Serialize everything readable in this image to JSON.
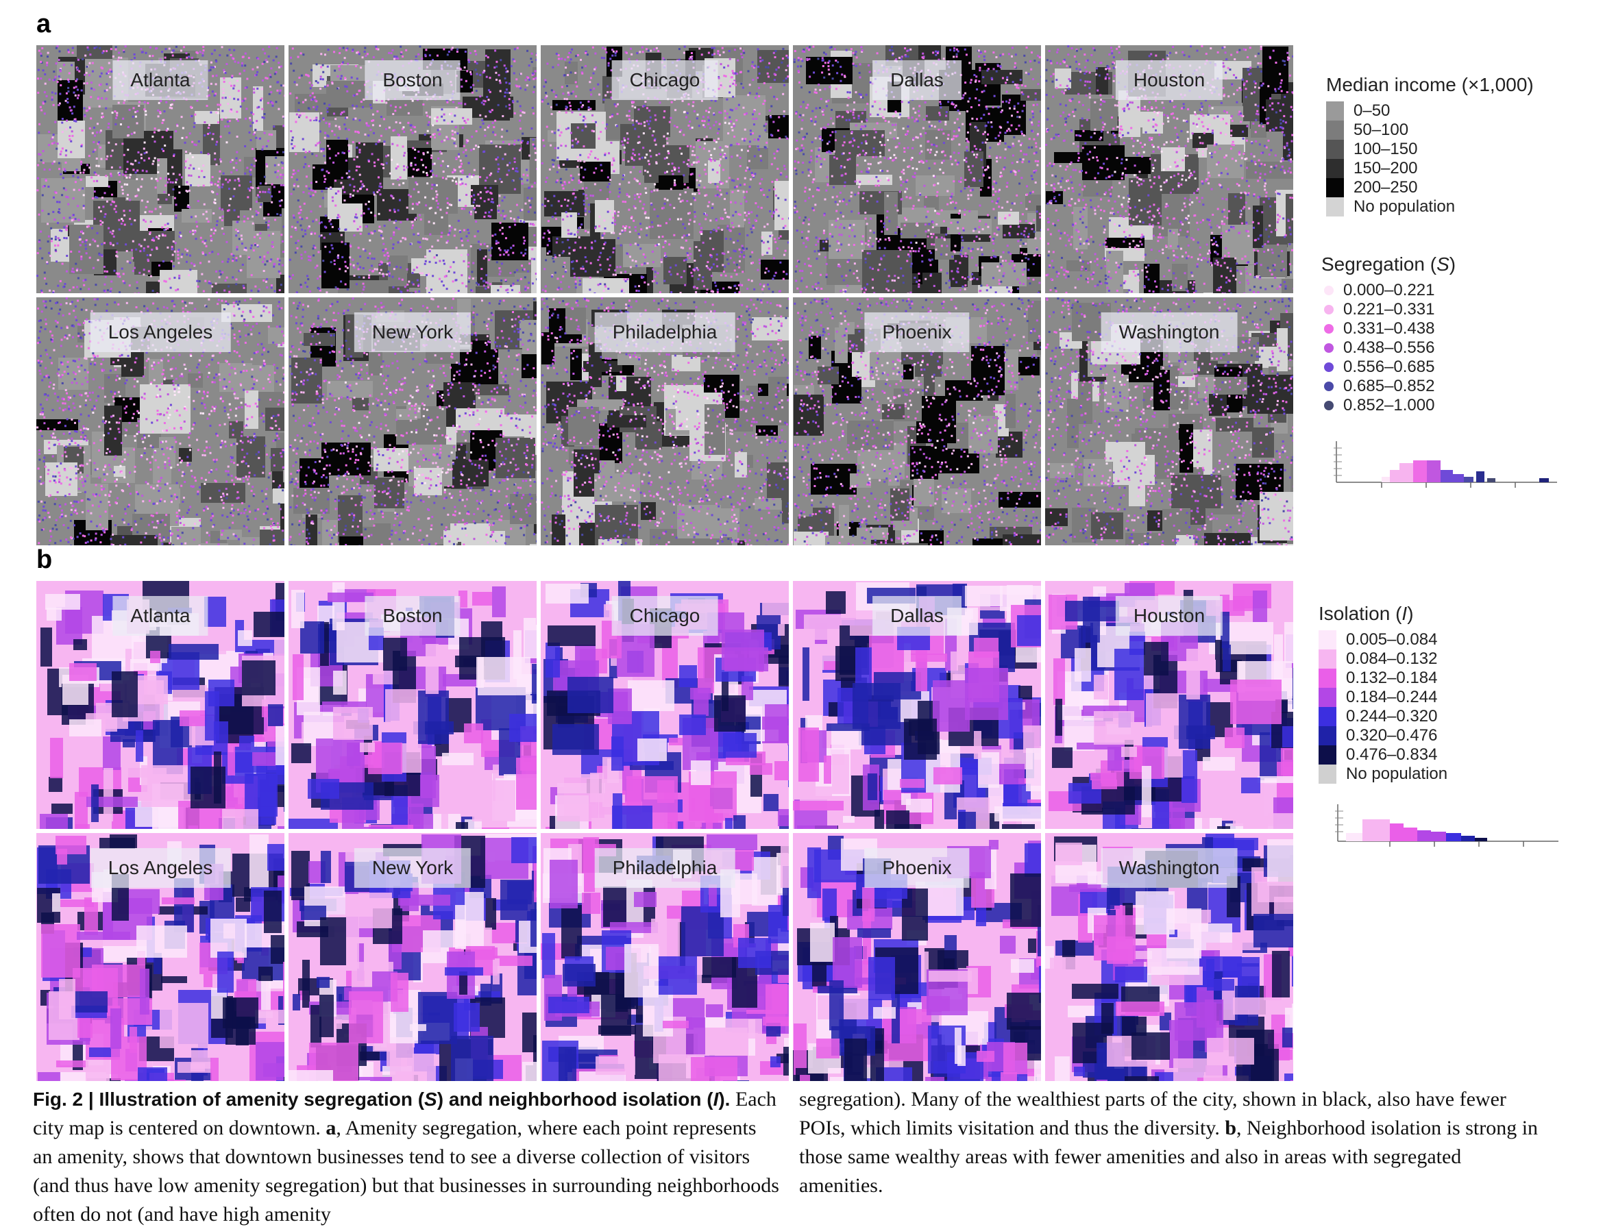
{
  "panel_a": {
    "letter": "a",
    "cities": [
      "Atlanta",
      "Boston",
      "Chicago",
      "Dallas",
      "Houston",
      "Los Angeles",
      "New York",
      "Philadelphia",
      "Phoenix",
      "Washington"
    ],
    "income_legend": {
      "title": "Median income (×1,000)",
      "items": [
        {
          "label": "0–50",
          "color": "#9a9a9a"
        },
        {
          "label": "50–100",
          "color": "#7c7c7c"
        },
        {
          "label": "100–150",
          "color": "#555555"
        },
        {
          "label": "150–200",
          "color": "#2e2e2e"
        },
        {
          "label": "200–250",
          "color": "#050505"
        },
        {
          "label": "No population",
          "color": "#d4d4d4"
        }
      ]
    },
    "segregation_legend": {
      "title": "Segregation (",
      "title_var": "S",
      "title_end": ")",
      "items": [
        {
          "label": "0.000–0.221",
          "color": "#fde6f8"
        },
        {
          "label": "0.221–0.331",
          "color": "#f7b4ef"
        },
        {
          "label": "0.331–0.438",
          "color": "#ee6ce6"
        },
        {
          "label": "0.438–0.556",
          "color": "#c057e0"
        },
        {
          "label": "0.556–0.685",
          "color": "#6f4ad8"
        },
        {
          "label": "0.685–0.852",
          "color": "#4b4aa8"
        },
        {
          "label": "0.852–1.000",
          "color": "#454a72"
        }
      ]
    }
  },
  "panel_b": {
    "letter": "b",
    "cities": [
      "Atlanta",
      "Boston",
      "Chicago",
      "Dallas",
      "Houston",
      "Los Angeles",
      "New York",
      "Philadelphia",
      "Phoenix",
      "Washington"
    ],
    "isolation_legend": {
      "title": "Isolation (",
      "title_var": "I",
      "title_end": ")",
      "items": [
        {
          "label": "0.005–0.084",
          "color": "#fde8fb"
        },
        {
          "label": "0.084–0.132",
          "color": "#f7b6f1"
        },
        {
          "label": "0.132–0.184",
          "color": "#ea5fe8"
        },
        {
          "label": "0.184–0.244",
          "color": "#b347e6"
        },
        {
          "label": "0.244–0.320",
          "color": "#3c2fe0"
        },
        {
          "label": "0.320–0.476",
          "color": "#1f22a8"
        },
        {
          "label": "0.476–0.834",
          "color": "#0d0f4a"
        },
        {
          "label": "No population",
          "color": "#d0d0d0"
        }
      ]
    }
  },
  "colors": {
    "map_gray_bg": "#8a8a8a",
    "label_box": "rgba(235,235,245,0.72)"
  },
  "caption": {
    "fig": "Fig. 2 | Illustration of amenity segregation (",
    "fig_s": "S",
    "fig_mid": ") and neighborhood isolation (",
    "fig_i": "I",
    "fig_end": ").",
    "left_rest": " Each city map is centered on downtown. ",
    "a_letter": "a",
    "left_rest2": ", Amenity segregation, where each point represents an amenity, shows that downtown businesses tend to see a diverse collection of visitors (and thus have low amenity segregation) but that businesses in surrounding neighborhoods often do not (and have high amenity",
    "right_1": "segregation). Many of the wealthiest parts of the city, shown in black, also have fewer POIs, which limits visitation and thus the diversity. ",
    "b_letter": "b",
    "right_2": ", Neighborhood isolation is strong in those same wealthy areas with fewer amenities and also in areas with segregated amenities."
  }
}
